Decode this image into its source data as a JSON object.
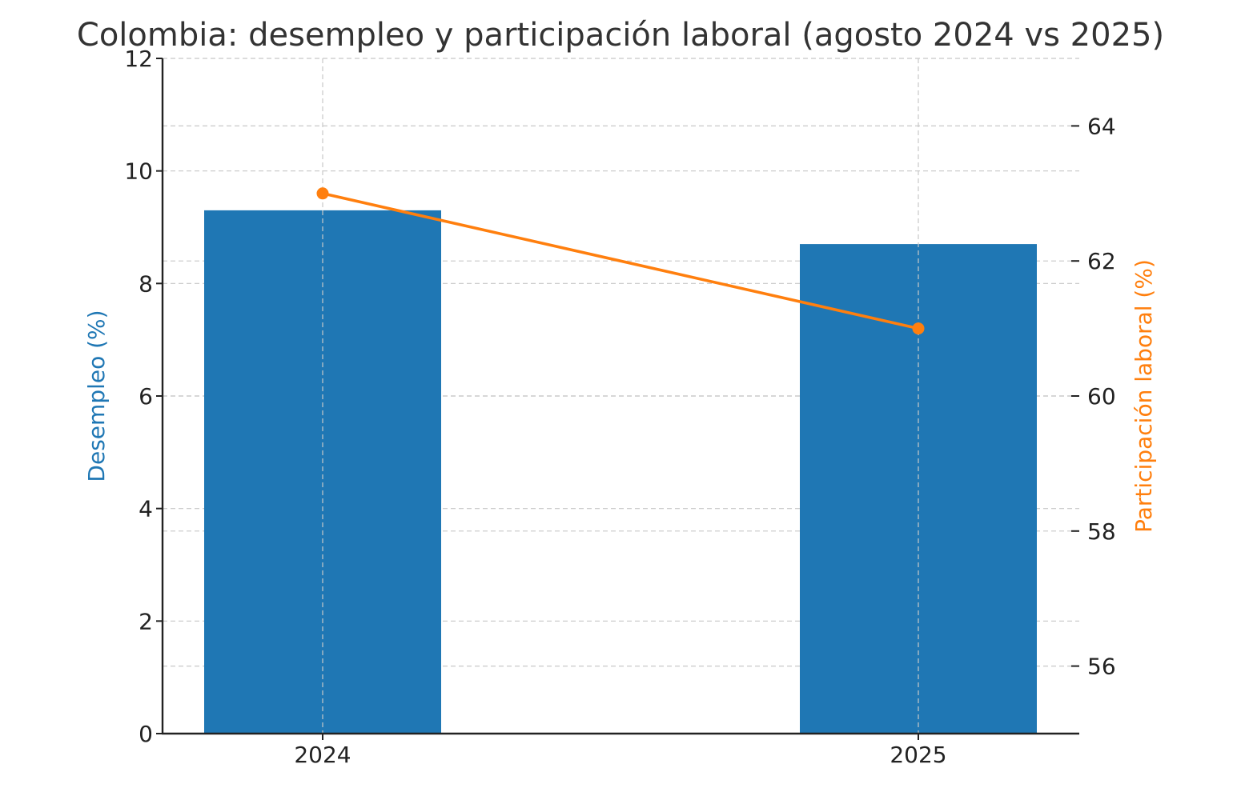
{
  "chart_data": {
    "type": "bar",
    "title": "Colombia: desempleo y participación laboral (agosto 2024 vs 2025)",
    "categories": [
      "2024",
      "2025"
    ],
    "series": [
      {
        "name": "Desempleo (%)",
        "type": "bar",
        "axis": "left",
        "color": "#1f77b4",
        "values": [
          9.3,
          8.7
        ]
      },
      {
        "name": "Participación laboral (%)",
        "type": "line",
        "axis": "right",
        "color": "#ff7f0e",
        "values": [
          63.0,
          61.0
        ]
      }
    ],
    "ylabel": "Desempleo (%)",
    "ylabel_color": "#1f77b4",
    "ylim": [
      0,
      12
    ],
    "yticks": [
      "0",
      "2",
      "4",
      "6",
      "8",
      "10",
      "12"
    ],
    "y2label": "Participación laboral (%)",
    "y2label_color": "#ff7f0e",
    "y2lim": [
      55,
      65
    ],
    "y2ticks": [
      "56",
      "58",
      "60",
      "62",
      "64"
    ],
    "xlabel": "",
    "grid": true
  }
}
